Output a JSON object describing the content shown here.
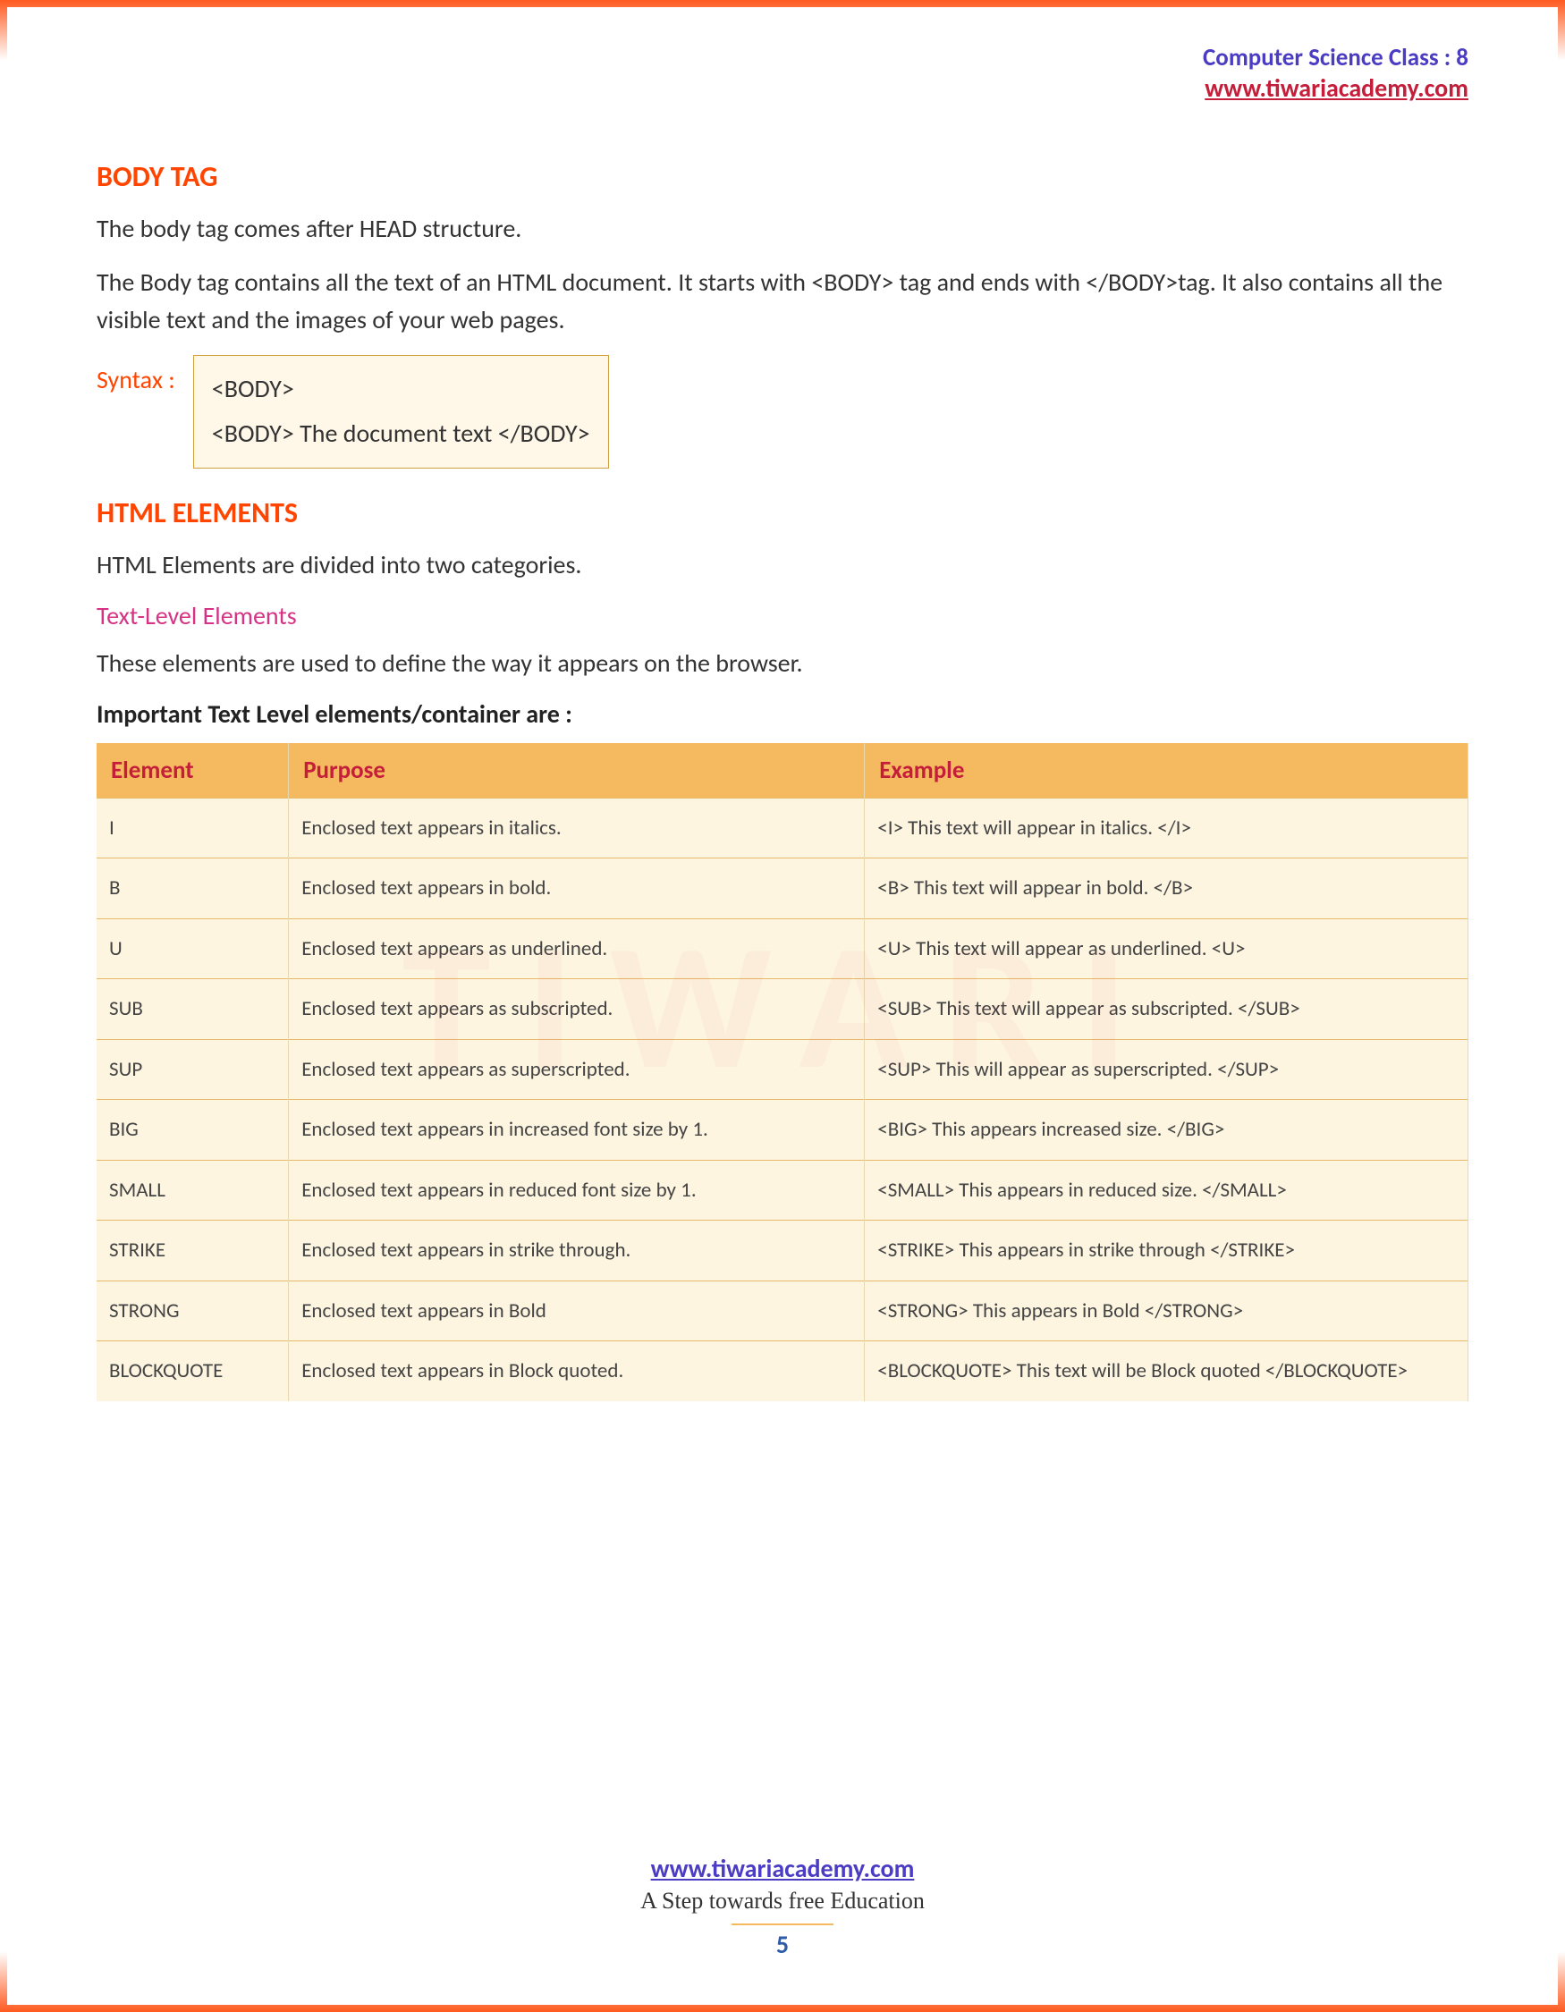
{
  "header": {
    "class_label": "Computer Science Class : 8",
    "site": "www.tiwariacademy.com"
  },
  "colors": {
    "heading": "#ff4500",
    "header_class": "#4b3cc4",
    "header_site": "#c41e3a",
    "subsection": "#d63384",
    "table_header_bg": "#f5b960",
    "table_header_text": "#c41e3a",
    "table_body_bg": "#fdf5e0",
    "table_border": "#e6b86a",
    "body_text": "#333333",
    "page_number": "#2e5caa",
    "gradient_edge": "#ff5a1f"
  },
  "typography": {
    "heading_fontsize": 32,
    "body_fontsize": 28,
    "table_header_fontsize": 27,
    "table_cell_fontsize": 23,
    "footer_fontsize": 28
  },
  "section1": {
    "heading": "BODY TAG",
    "p1": "The body tag comes after HEAD structure.",
    "p2": "The Body tag contains all the text of an HTML document. It starts with <BODY> tag and ends with </BODY>tag. It also contains all the visible text and the images of your web pages.",
    "syntax_label": "Syntax :",
    "syntax_line1": "<BODY>",
    "syntax_line2": "<BODY> The document text </BODY>"
  },
  "section2": {
    "heading": "HTML ELEMENTS",
    "p1": "HTML Elements are divided into two categories.",
    "subheading": "Text-Level Elements",
    "p2": "These elements are used to define the way it appears on the browser.",
    "bold_intro": "Important Text Level elements/container are :"
  },
  "table": {
    "columns": [
      "Element",
      "Purpose",
      "Example"
    ],
    "rows": [
      [
        "I",
        "Enclosed text appears in italics.",
        "<I> This text will appear in italics. </I>"
      ],
      [
        "B",
        "Enclosed text appears in bold.",
        "<B> This text will appear in bold. </B>"
      ],
      [
        "U",
        "Enclosed text appears as underlined.",
        "<U> This text will appear as underlined. <U>"
      ],
      [
        "SUB",
        "Enclosed text appears as subscripted.",
        "<SUB> This text will appear as subscripted. </SUB>"
      ],
      [
        "SUP",
        "Enclosed text appears as superscripted.",
        "<SUP> This will appear as superscripted. </SUP>"
      ],
      [
        "BIG",
        "Enclosed text appears in increased font size by 1.",
        "<BIG> This appears increased size. </BIG>"
      ],
      [
        "SMALL",
        "Enclosed text appears in reduced font size by 1.",
        "<SMALL> This appears in reduced size. </SMALL>"
      ],
      [
        "STRIKE",
        "Enclosed text appears in strike through.",
        "<STRIKE> This appears in strike through </STRIKE>"
      ],
      [
        "STRONG",
        "Enclosed text appears in Bold",
        "<STRONG> This appears in Bold </STRONG>"
      ],
      [
        "BLOCKQUOTE",
        "Enclosed text appears in Block quoted.",
        "<BLOCKQUOTE> This text will be Block quoted </BLOCKQUOTE>"
      ]
    ]
  },
  "footer": {
    "site": "www.tiwariacademy.com",
    "tagline": "A Step towards free Education",
    "page_number": "5"
  },
  "watermark": "TIWARI"
}
